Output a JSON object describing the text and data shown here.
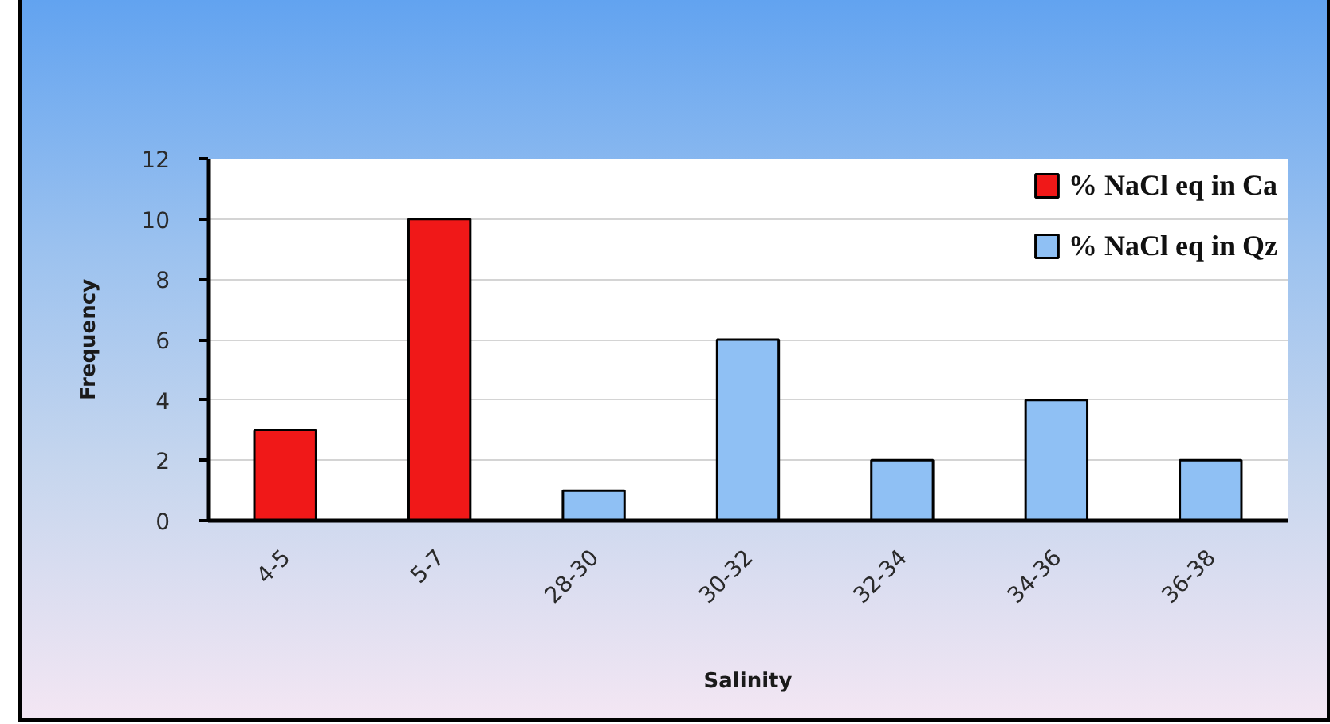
{
  "chart_data": {
    "type": "bar",
    "xlabel": "Salinity",
    "ylabel": "Frequency",
    "categories": [
      "4-5",
      "5-7",
      "28-30",
      "30-32",
      "32-34",
      "34-36",
      "36-38"
    ],
    "series": [
      {
        "name": "% NaCl eq in Ca",
        "color": "#f01818",
        "values": [
          3,
          10,
          null,
          null,
          null,
          null,
          null
        ]
      },
      {
        "name": "% NaCl eq in Qz",
        "color": "#8fc0f4",
        "values": [
          null,
          null,
          1,
          6,
          2,
          4,
          2
        ]
      }
    ],
    "ylim": [
      0,
      12
    ],
    "yticks": [
      0,
      2,
      4,
      6,
      8,
      10,
      12
    ],
    "grid": "y",
    "legend": "top right"
  }
}
